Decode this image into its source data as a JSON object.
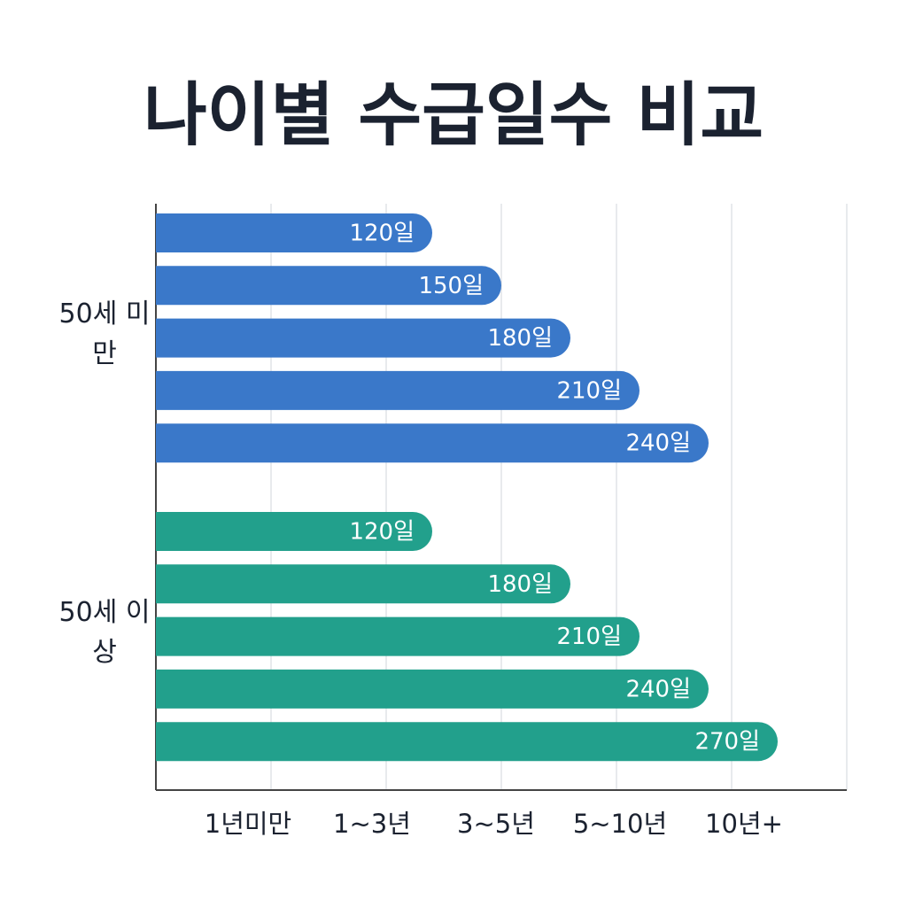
{
  "chart_data": {
    "type": "grouped-hbar",
    "title": "나이별 수급일수 비교",
    "categories": [
      "1년미만",
      "1~3년",
      "3~5년",
      "5~10년",
      "10년+"
    ],
    "series": [
      {
        "name": "50세 미만",
        "color": "#3a78c9",
        "values": [
          120,
          150,
          180,
          210,
          240
        ],
        "value_labels": [
          "120일",
          "150일",
          "180일",
          "210일",
          "240일"
        ]
      },
      {
        "name": "50세 이상",
        "color": "#22a08c",
        "values": [
          120,
          180,
          210,
          240,
          270
        ],
        "value_labels": [
          "120일",
          "180일",
          "210일",
          "240일",
          "270일"
        ]
      }
    ],
    "xlim": [
      0,
      300
    ],
    "xticks": [
      50,
      100,
      150,
      200,
      250,
      300
    ],
    "grid": true
  }
}
